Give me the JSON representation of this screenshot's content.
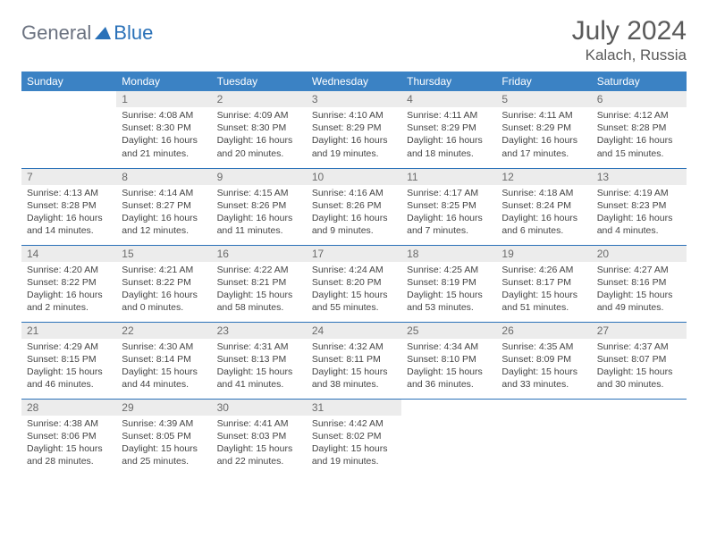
{
  "brand": {
    "part1": "General",
    "part2": "Blue"
  },
  "title": "July 2024",
  "location": "Kalach, Russia",
  "colors": {
    "header_bg": "#3b82c4",
    "header_text": "#ffffff",
    "daynum_bg": "#ececec",
    "border": "#2a71b8",
    "brand_gray": "#6b7280",
    "brand_blue": "#2a71b8"
  },
  "weekdays": [
    "Sunday",
    "Monday",
    "Tuesday",
    "Wednesday",
    "Thursday",
    "Friday",
    "Saturday"
  ],
  "start_offset": 1,
  "days": [
    {
      "n": 1,
      "sr": "4:08 AM",
      "ss": "8:30 PM",
      "dl": "16 hours and 21 minutes."
    },
    {
      "n": 2,
      "sr": "4:09 AM",
      "ss": "8:30 PM",
      "dl": "16 hours and 20 minutes."
    },
    {
      "n": 3,
      "sr": "4:10 AM",
      "ss": "8:29 PM",
      "dl": "16 hours and 19 minutes."
    },
    {
      "n": 4,
      "sr": "4:11 AM",
      "ss": "8:29 PM",
      "dl": "16 hours and 18 minutes."
    },
    {
      "n": 5,
      "sr": "4:11 AM",
      "ss": "8:29 PM",
      "dl": "16 hours and 17 minutes."
    },
    {
      "n": 6,
      "sr": "4:12 AM",
      "ss": "8:28 PM",
      "dl": "16 hours and 15 minutes."
    },
    {
      "n": 7,
      "sr": "4:13 AM",
      "ss": "8:28 PM",
      "dl": "16 hours and 14 minutes."
    },
    {
      "n": 8,
      "sr": "4:14 AM",
      "ss": "8:27 PM",
      "dl": "16 hours and 12 minutes."
    },
    {
      "n": 9,
      "sr": "4:15 AM",
      "ss": "8:26 PM",
      "dl": "16 hours and 11 minutes."
    },
    {
      "n": 10,
      "sr": "4:16 AM",
      "ss": "8:26 PM",
      "dl": "16 hours and 9 minutes."
    },
    {
      "n": 11,
      "sr": "4:17 AM",
      "ss": "8:25 PM",
      "dl": "16 hours and 7 minutes."
    },
    {
      "n": 12,
      "sr": "4:18 AM",
      "ss": "8:24 PM",
      "dl": "16 hours and 6 minutes."
    },
    {
      "n": 13,
      "sr": "4:19 AM",
      "ss": "8:23 PM",
      "dl": "16 hours and 4 minutes."
    },
    {
      "n": 14,
      "sr": "4:20 AM",
      "ss": "8:22 PM",
      "dl": "16 hours and 2 minutes."
    },
    {
      "n": 15,
      "sr": "4:21 AM",
      "ss": "8:22 PM",
      "dl": "16 hours and 0 minutes."
    },
    {
      "n": 16,
      "sr": "4:22 AM",
      "ss": "8:21 PM",
      "dl": "15 hours and 58 minutes."
    },
    {
      "n": 17,
      "sr": "4:24 AM",
      "ss": "8:20 PM",
      "dl": "15 hours and 55 minutes."
    },
    {
      "n": 18,
      "sr": "4:25 AM",
      "ss": "8:19 PM",
      "dl": "15 hours and 53 minutes."
    },
    {
      "n": 19,
      "sr": "4:26 AM",
      "ss": "8:17 PM",
      "dl": "15 hours and 51 minutes."
    },
    {
      "n": 20,
      "sr": "4:27 AM",
      "ss": "8:16 PM",
      "dl": "15 hours and 49 minutes."
    },
    {
      "n": 21,
      "sr": "4:29 AM",
      "ss": "8:15 PM",
      "dl": "15 hours and 46 minutes."
    },
    {
      "n": 22,
      "sr": "4:30 AM",
      "ss": "8:14 PM",
      "dl": "15 hours and 44 minutes."
    },
    {
      "n": 23,
      "sr": "4:31 AM",
      "ss": "8:13 PM",
      "dl": "15 hours and 41 minutes."
    },
    {
      "n": 24,
      "sr": "4:32 AM",
      "ss": "8:11 PM",
      "dl": "15 hours and 38 minutes."
    },
    {
      "n": 25,
      "sr": "4:34 AM",
      "ss": "8:10 PM",
      "dl": "15 hours and 36 minutes."
    },
    {
      "n": 26,
      "sr": "4:35 AM",
      "ss": "8:09 PM",
      "dl": "15 hours and 33 minutes."
    },
    {
      "n": 27,
      "sr": "4:37 AM",
      "ss": "8:07 PM",
      "dl": "15 hours and 30 minutes."
    },
    {
      "n": 28,
      "sr": "4:38 AM",
      "ss": "8:06 PM",
      "dl": "15 hours and 28 minutes."
    },
    {
      "n": 29,
      "sr": "4:39 AM",
      "ss": "8:05 PM",
      "dl": "15 hours and 25 minutes."
    },
    {
      "n": 30,
      "sr": "4:41 AM",
      "ss": "8:03 PM",
      "dl": "15 hours and 22 minutes."
    },
    {
      "n": 31,
      "sr": "4:42 AM",
      "ss": "8:02 PM",
      "dl": "15 hours and 19 minutes."
    }
  ],
  "labels": {
    "sunrise": "Sunrise:",
    "sunset": "Sunset:",
    "daylight": "Daylight:"
  }
}
